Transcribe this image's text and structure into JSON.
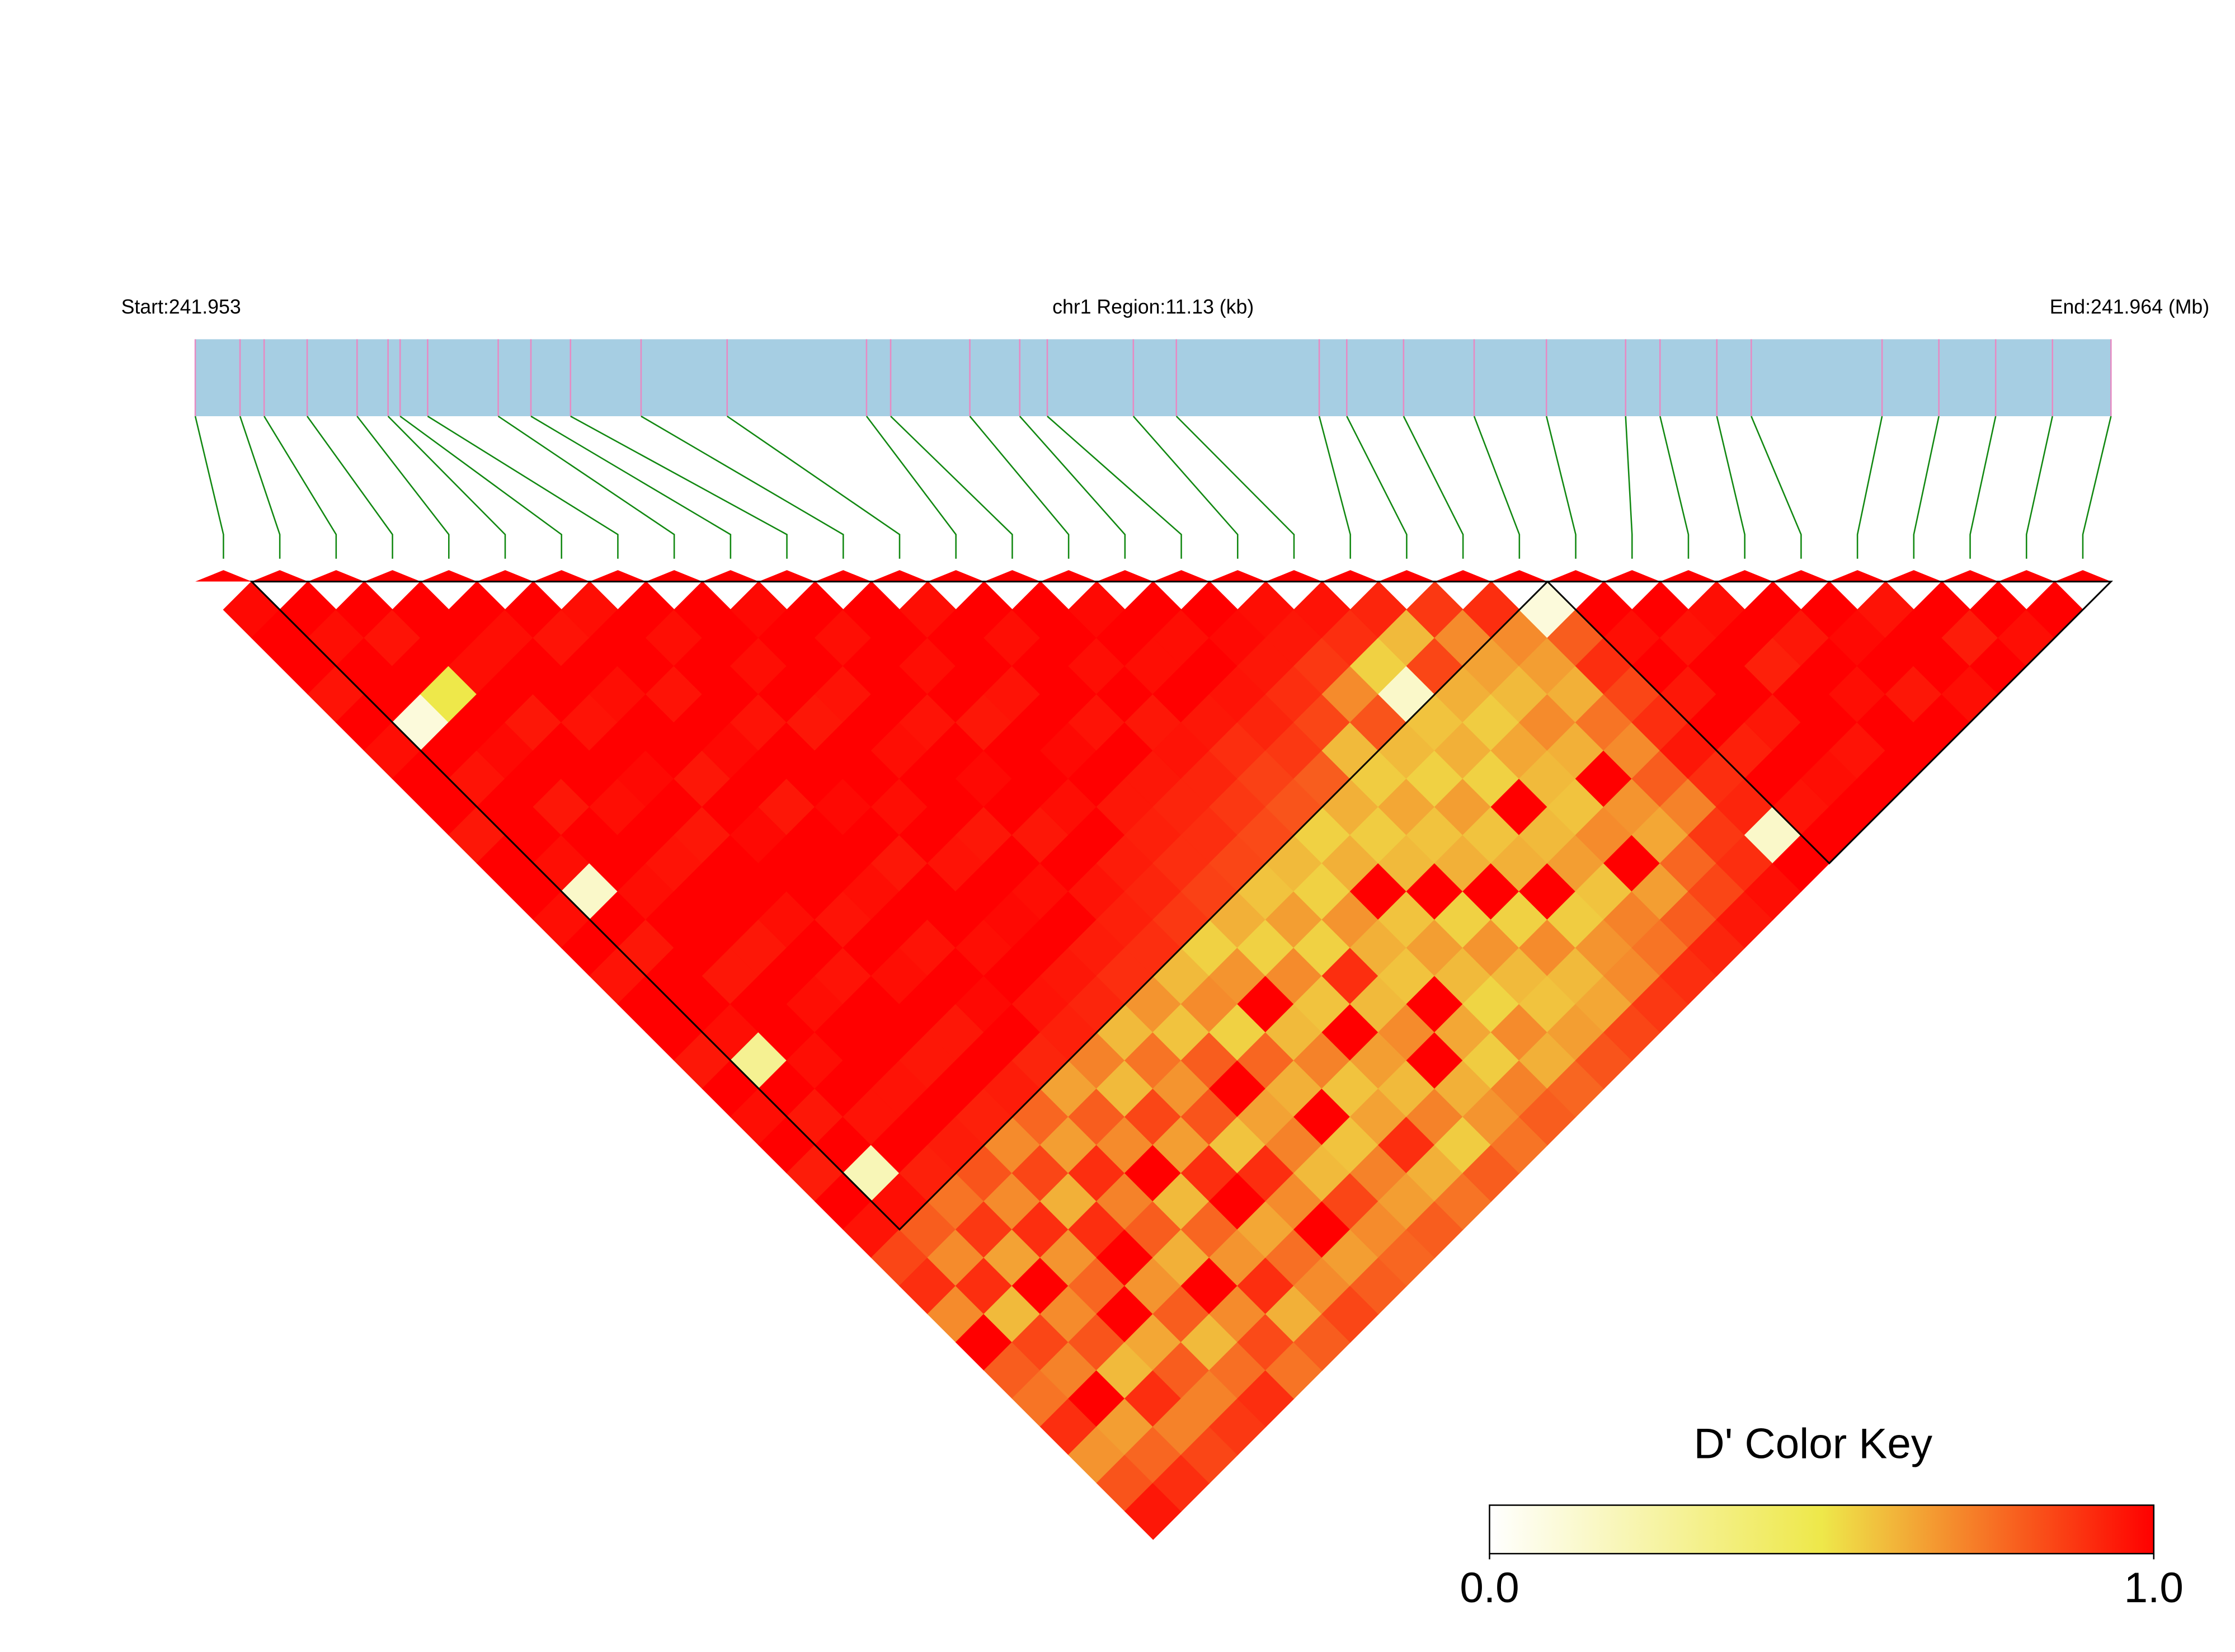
{
  "chart_data": {
    "type": "ld-heatmap",
    "start_label": "Start:241.953",
    "region_label": "chr1 Region:11.13 (kb)",
    "end_label": "End:241.964 (Mb)",
    "key_title": "D' Color Key",
    "key_ticks": [
      {
        "value": 0,
        "label": "0.0"
      },
      {
        "value": 1,
        "label": "1.0"
      }
    ],
    "colors": [
      "#ffffff",
      "#eee84a",
      "#ff0000"
    ],
    "region_kb": 11.13,
    "positions_kb": [
      0,
      0.26,
      0.4,
      0.65,
      0.94,
      1.12,
      1.19,
      1.35,
      1.76,
      1.95,
      2.18,
      2.59,
      3.09,
      3.9,
      4.04,
      4.5,
      4.79,
      4.95,
      5.45,
      5.7,
      6.53,
      6.69,
      7.02,
      7.43,
      7.85,
      8.31,
      8.51,
      8.84,
      9.04,
      9.8,
      10.13,
      10.46,
      10.79,
      11.13
    ],
    "blocks": [
      [
        1,
        23
      ],
      [
        24,
        33
      ]
    ],
    "dprime": [
      [
        0.98,
        1,
        1,
        0.96,
        1,
        0.97,
        1,
        1,
        0.95,
        1,
        1,
        0.97,
        1,
        0.96,
        1,
        1,
        0.95,
        1,
        0.97,
        1,
        0.94,
        1,
        0.96,
        0.85,
        0.9,
        0.7,
        1,
        0.8,
        0.75,
        0.9,
        0.68,
        0.82,
        0.95
      ],
      [
        1,
        0.97,
        1,
        1,
        0.1,
        1,
        0.96,
        1,
        1,
        0.97,
        0.15,
        1,
        0.95,
        1,
        1,
        0.97,
        0.3,
        1,
        0.95,
        1,
        0.2,
        0.97,
        0.8,
        0.7,
        0.9,
        0.6,
        0.85,
        0.72,
        1,
        0.66,
        0.78,
        0.9
      ],
      [
        1,
        0.96,
        1,
        0.5,
        1,
        0.98,
        1,
        0.95,
        1,
        1,
        0.97,
        1,
        1,
        0.95,
        1,
        1,
        0.97,
        1,
        0.96,
        1,
        0.93,
        0.75,
        0.88,
        0.65,
        1,
        0.7,
        0.82,
        0.6,
        0.9,
        0.72,
        0.85
      ],
      [
        1,
        1,
        0.97,
        1,
        0.95,
        1,
        1,
        0.97,
        1,
        0.96,
        1,
        1,
        0.95,
        1,
        0.97,
        1,
        1,
        0.96,
        1,
        0.94,
        0.82,
        0.7,
        0.9,
        0.68,
        0.78,
        1,
        0.64,
        0.8,
        0.72,
        0.88
      ],
      [
        1,
        0.97,
        1,
        1,
        0.96,
        1,
        0.98,
        1,
        0.95,
        1,
        1,
        0.97,
        1,
        0.96,
        1,
        1,
        0.95,
        1,
        0.93,
        0.7,
        0.85,
        0.62,
        0.9,
        1,
        0.68,
        0.8,
        0.6,
        0.76,
        0.9
      ],
      [
        1,
        0.96,
        1,
        0.97,
        1,
        1,
        0.95,
        1,
        0.98,
        1,
        1,
        0.96,
        1,
        0.97,
        1,
        0.95,
        1,
        0.94,
        0.78,
        0.66,
        0.9,
        0.72,
        0.8,
        0.62,
        1,
        0.7,
        0.84,
        0.75
      ],
      [
        0.97,
        1,
        1,
        0.96,
        1,
        0.98,
        1,
        0.95,
        1,
        1,
        0.97,
        1,
        0.96,
        1,
        0.98,
        1,
        0.92,
        0.65,
        0.8,
        0.7,
        1,
        0.6,
        0.78,
        0.68,
        0.9,
        0.62,
        0.8
      ],
      [
        1,
        0.97,
        1,
        1,
        0.96,
        1,
        1,
        0.98,
        1,
        0.95,
        1,
        1,
        0.97,
        1,
        0.96,
        0.93,
        0.72,
        0.6,
        0.85,
        0.66,
        0.9,
        1,
        0.64,
        0.76,
        0.7,
        0.85
      ],
      [
        1,
        1,
        0.97,
        1,
        0.95,
        1,
        1,
        0.97,
        1,
        0.96,
        1,
        0.98,
        1,
        0.95,
        0.92,
        0.6,
        0.75,
        0.68,
        0.82,
        0.58,
        0.9,
        0.7,
        1,
        0.66,
        0.8
      ],
      [
        0.98,
        1,
        1,
        0.96,
        1,
        0.97,
        1,
        1,
        0.95,
        1,
        0.97,
        1,
        0.94,
        0.9,
        0.68,
        0.58,
        0.8,
        1,
        0.65,
        0.72,
        0.6,
        0.85,
        0.7,
        0.78
      ],
      [
        1,
        0.97,
        1,
        1,
        0.96,
        1,
        0.98,
        1,
        0.95,
        1,
        0.96,
        0.93,
        0.9,
        0.6,
        0.7,
        0.55,
        0.78,
        0.62,
        1,
        0.58,
        0.72,
        0.66,
        0.8
      ],
      [
        1,
        1,
        0.97,
        1,
        0.95,
        1,
        1,
        0.97,
        1,
        0.94,
        0.92,
        0.88,
        0.55,
        0.68,
        1,
        0.6,
        0.72,
        0.58,
        0.65,
        0.9,
        0.62,
        0.75
      ],
      [
        0.97,
        1,
        1,
        0.96,
        1,
        0.98,
        1,
        0.95,
        0.93,
        0.9,
        0.86,
        0.62,
        0.55,
        0.7,
        0.58,
        1,
        0.66,
        0.6,
        0.72,
        0.56,
        0.8
      ],
      [
        1,
        0.97,
        1,
        1,
        0.96,
        1,
        0.95,
        0.92,
        0.9,
        0.85,
        0.58,
        0.66,
        0.55,
        0.9,
        0.6,
        0.7,
        1,
        0.62,
        0.68,
        0.75
      ],
      [
        1,
        1,
        0.97,
        1,
        0.95,
        0.96,
        0.92,
        0.88,
        0.84,
        0.6,
        0.55,
        0.68,
        0.62,
        0.58,
        1,
        0.64,
        0.56,
        0.72,
        0.8
      ],
      [
        0.98,
        1,
        0.97,
        1,
        0.95,
        0.9,
        0.86,
        0.82,
        0.55,
        0.62,
        1,
        0.58,
        0.66,
        0.6,
        0.54,
        0.7,
        0.62,
        0.78
      ],
      [
        1,
        0.97,
        1,
        0.96,
        0.92,
        0.88,
        0.8,
        0.62,
        0.56,
        0.6,
        1,
        0.55,
        0.68,
        0.6,
        0.58,
        0.66,
        0.82
      ],
      [
        1,
        0.98,
        0.95,
        0.9,
        0.85,
        0.6,
        0.56,
        0.64,
        0.58,
        0.62,
        1,
        0.55,
        0.7,
        0.6,
        0.64,
        0.85
      ],
      [
        0.97,
        0.95,
        0.88,
        0.7,
        0.82,
        0.6,
        0.55,
        0.66,
        0.58,
        0.62,
        1,
        0.56,
        0.68,
        0.7,
        0.88
      ],
      [
        0.96,
        0.9,
        0.55,
        0.15,
        0.58,
        0.62,
        0.55,
        1,
        0.6,
        0.66,
        0.58,
        0.72,
        0.75,
        0.9
      ],
      [
        0.92,
        0.6,
        0.85,
        0.62,
        0.56,
        0.64,
        0.6,
        0.58,
        0.7,
        1,
        0.66,
        0.8,
        0.92
      ],
      [
        0.88,
        0.7,
        0.65,
        0.6,
        0.7,
        0.62,
        1,
        0.68,
        0.64,
        0.78,
        0.85,
        0.95
      ],
      [
        0.9,
        0.7,
        0.66,
        0.62,
        0.75,
        0.7,
        0.8,
        0.72,
        0.88,
        0.9,
        0.97
      ],
      [
        0.1,
        0.8,
        0.9,
        0.85,
        0.9,
        0.95,
        0.9,
        0.92,
        0.15,
        1
      ],
      [
        1,
        0.97,
        1,
        0.95,
        1,
        0.93,
        1,
        0.96,
        1
      ],
      [
        1,
        0.96,
        1,
        1,
        0.95,
        1,
        0.97,
        1
      ],
      [
        0.97,
        1,
        0.93,
        1,
        1,
        0.96,
        1
      ],
      [
        1,
        0.95,
        1,
        0.97,
        1,
        1
      ],
      [
        1,
        0.98,
        1,
        0.95,
        1
      ],
      [
        0.96,
        1,
        1,
        0.97
      ],
      [
        1,
        0.94,
        1
      ],
      [
        1,
        0.97
      ],
      [
        1
      ]
    ]
  }
}
